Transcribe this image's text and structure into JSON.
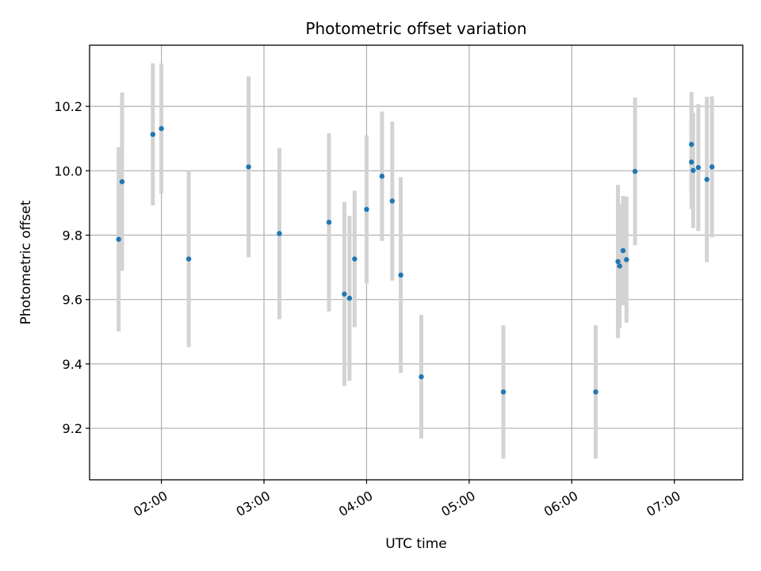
{
  "chart_data": {
    "type": "scatter",
    "title": "Photometric offset variation",
    "xlabel": "UTC time",
    "ylabel": "Photometric offset",
    "xlim": [
      "01:18",
      "07:40"
    ],
    "ylim": [
      9.04,
      10.39
    ],
    "x_ticks": [
      "02:00",
      "03:00",
      "04:00",
      "05:00",
      "06:00",
      "07:00"
    ],
    "y_ticks": [
      9.2,
      9.4,
      9.6,
      9.8,
      10.0,
      10.2
    ],
    "grid": true,
    "legend": "none",
    "point_color": "#1f77b4",
    "errorbar_color": "#d3d3d3",
    "series": [
      {
        "points": [
          {
            "x": "01:35",
            "y": 9.787,
            "err": 0.286
          },
          {
            "x": "01:37",
            "y": 9.966,
            "err": 0.277
          },
          {
            "x": "01:55",
            "y": 10.113,
            "err": 0.221
          },
          {
            "x": "02:00",
            "y": 10.131,
            "err": 0.202
          },
          {
            "x": "02:16",
            "y": 9.726,
            "err": 0.274
          },
          {
            "x": "02:51",
            "y": 10.012,
            "err": 0.281
          },
          {
            "x": "03:09",
            "y": 9.805,
            "err": 0.266
          },
          {
            "x": "03:38",
            "y": 9.84,
            "err": 0.277
          },
          {
            "x": "03:47",
            "y": 9.617,
            "err": 0.286
          },
          {
            "x": "03:50",
            "y": 9.604,
            "err": 0.256
          },
          {
            "x": "03:53",
            "y": 9.726,
            "err": 0.212
          },
          {
            "x": "04:00",
            "y": 9.88,
            "err": 0.23
          },
          {
            "x": "04:09",
            "y": 9.983,
            "err": 0.201
          },
          {
            "x": "04:15",
            "y": 9.906,
            "err": 0.247
          },
          {
            "x": "04:20",
            "y": 9.676,
            "err": 0.304
          },
          {
            "x": "04:32",
            "y": 9.36,
            "err": 0.192
          },
          {
            "x": "05:20",
            "y": 9.313,
            "err": 0.207
          },
          {
            "x": "06:14",
            "y": 9.313,
            "err": 0.207
          },
          {
            "x": "06:27",
            "y": 9.718,
            "err": 0.238
          },
          {
            "x": "06:28",
            "y": 9.704,
            "err": 0.192
          },
          {
            "x": "06:30",
            "y": 9.752,
            "err": 0.17
          },
          {
            "x": "06:32",
            "y": 9.724,
            "err": 0.196
          },
          {
            "x": "06:37",
            "y": 9.998,
            "err": 0.229
          },
          {
            "x": "07:10",
            "y": 10.082,
            "err": 0.163
          },
          {
            "x": "07:10",
            "y": 10.027,
            "err": 0.146
          },
          {
            "x": "07:11",
            "y": 10.001,
            "err": 0.179
          },
          {
            "x": "07:14",
            "y": 10.01,
            "err": 0.197
          },
          {
            "x": "07:19",
            "y": 9.973,
            "err": 0.257
          },
          {
            "x": "07:22",
            "y": 10.012,
            "err": 0.219
          }
        ]
      }
    ]
  }
}
